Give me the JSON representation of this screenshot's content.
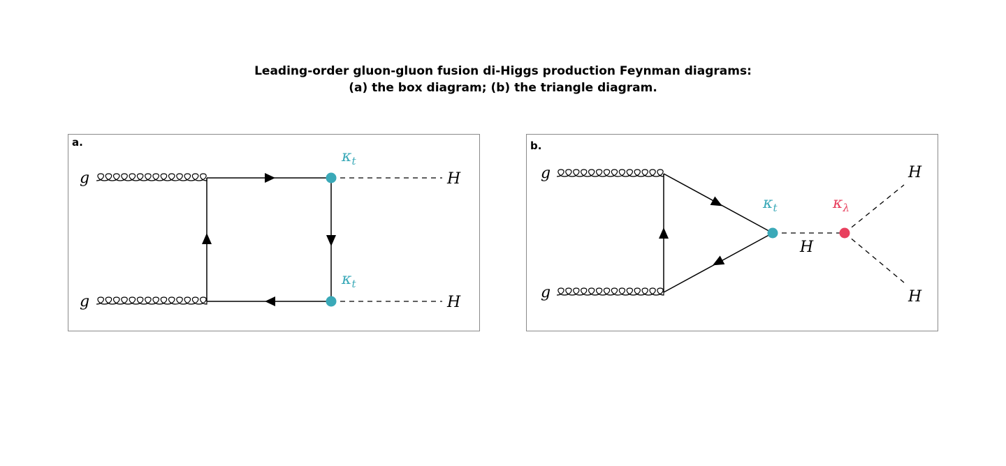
{
  "title": {
    "line1": "Leading-order gluon-gluon fusion di-Higgs production Feynman diagrams:",
    "line2": "(a) the box diagram; (b) the triangle diagram."
  },
  "panel_a": {
    "label": "a.",
    "gluon_top": "g",
    "gluon_bottom": "g",
    "higgs_top": "H",
    "higgs_bottom": "H",
    "coupling_top": {
      "symbol": "κ",
      "subscript": "t"
    },
    "coupling_bottom": {
      "symbol": "κ",
      "subscript": "t"
    }
  },
  "panel_b": {
    "label": "b.",
    "gluon_top": "g",
    "gluon_bottom": "g",
    "higgs_mid": "H",
    "higgs_top": "H",
    "higgs_bottom": "H",
    "coupling_top": {
      "symbol": "κ",
      "subscript": "t"
    },
    "coupling_self": {
      "symbol": "κ",
      "subscript": "λ"
    }
  },
  "colors": {
    "top_coupling": "#3aa9b8",
    "self_coupling": "#e8405e",
    "line": "#000000"
  }
}
